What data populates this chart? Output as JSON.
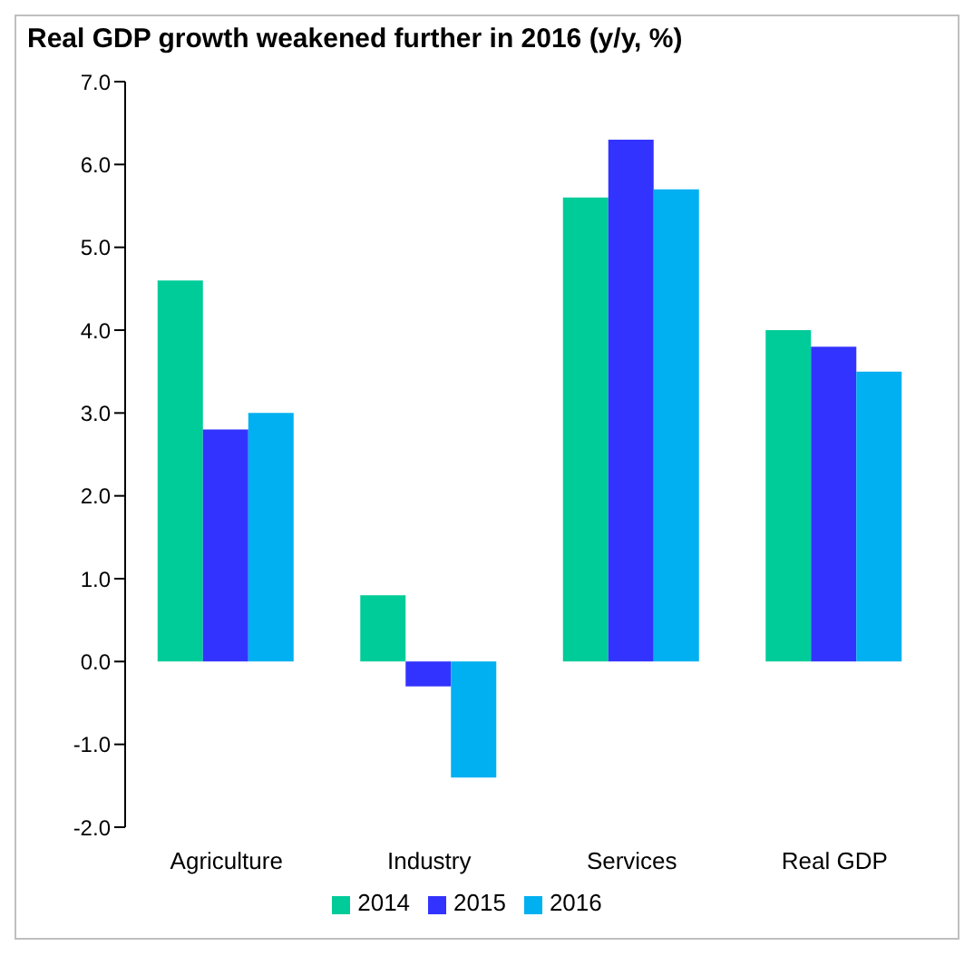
{
  "chart_data": {
    "type": "bar",
    "title": "Real GDP growth weakened further in 2016 (y/y, %)",
    "categories": [
      "Agriculture",
      "Industry",
      "Services",
      "Real GDP"
    ],
    "series": [
      {
        "name": "2014",
        "color": "#00cc99",
        "values": [
          4.6,
          0.8,
          5.6,
          4.0
        ]
      },
      {
        "name": "2015",
        "color": "#3333ff",
        "values": [
          2.8,
          -0.3,
          6.3,
          3.8
        ]
      },
      {
        "name": "2016",
        "color": "#00b0f0",
        "values": [
          3.0,
          -1.4,
          5.7,
          3.5
        ]
      }
    ],
    "ylim": [
      -2,
      7
    ],
    "yticks": [
      {
        "value": -2,
        "label": "-2.0"
      },
      {
        "value": -1,
        "label": "-1.0"
      },
      {
        "value": 0,
        "label": "0.0"
      },
      {
        "value": 1,
        "label": "1.0"
      },
      {
        "value": 2,
        "label": "2.0"
      },
      {
        "value": 3,
        "label": "3.0"
      },
      {
        "value": 4,
        "label": "4.0"
      },
      {
        "value": 5,
        "label": "5.0"
      },
      {
        "value": 6,
        "label": "6.0"
      },
      {
        "value": 7,
        "label": "7.0"
      }
    ],
    "grid": false,
    "legend": "bottom"
  }
}
